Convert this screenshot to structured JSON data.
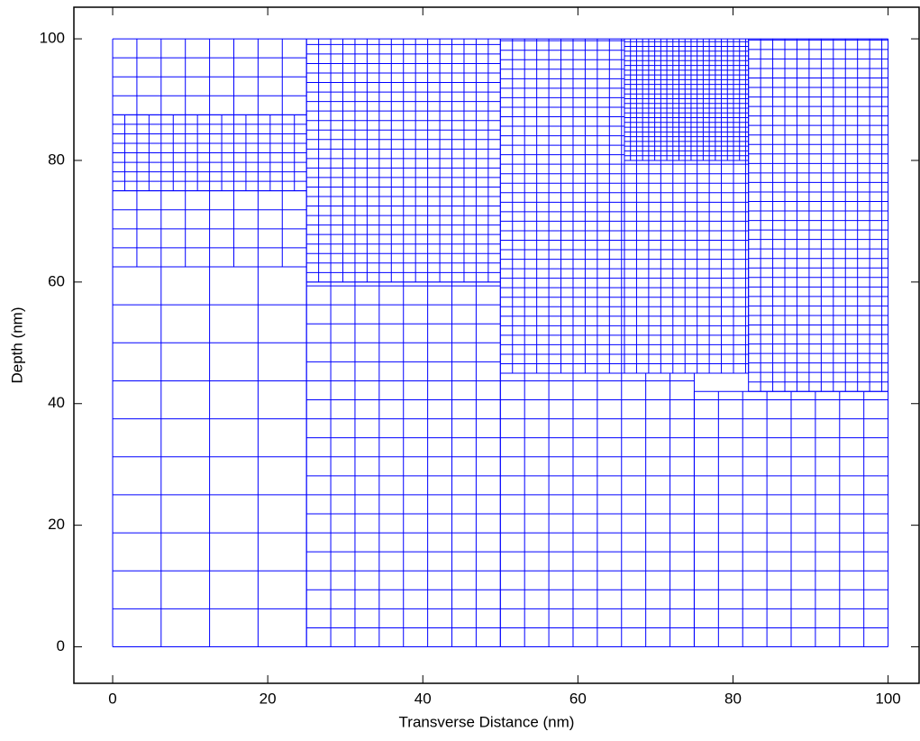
{
  "chart_data": {
    "type": "mesh",
    "xlabel": "Transverse Distance (nm)",
    "ylabel": "Depth (nm)",
    "xlim": [
      -5,
      104
    ],
    "ylim": [
      -6,
      105.2
    ],
    "xticks": [
      0,
      20,
      40,
      60,
      80,
      100
    ],
    "yticks": [
      0,
      20,
      40,
      60,
      80,
      100
    ],
    "color": "#0000ff",
    "blocks": [
      [
        0,
        25,
        0,
        62.5,
        6.25,
        6.25
      ],
      [
        0,
        25,
        62.5,
        75,
        3.125,
        3.125
      ],
      [
        0,
        25,
        75,
        87.5,
        1.5625,
        1.5625
      ],
      [
        0,
        25,
        87.5,
        100,
        3.125,
        3.125
      ],
      [
        25,
        50,
        0,
        60,
        3.125,
        3.125
      ],
      [
        25,
        50,
        60,
        100,
        1.5625,
        1.5625
      ],
      [
        50,
        75,
        0,
        45,
        3.125,
        3.125
      ],
      [
        75,
        100,
        0,
        42,
        3.125,
        3.125
      ],
      [
        50,
        66,
        45,
        100,
        1.5625,
        1.5625
      ],
      [
        66,
        82,
        45,
        80,
        1.5625,
        1.5625
      ],
      [
        66,
        82,
        80,
        100,
        0.78125,
        0.78125
      ],
      [
        82,
        100,
        42,
        100,
        1.5625,
        1.5625
      ]
    ]
  }
}
